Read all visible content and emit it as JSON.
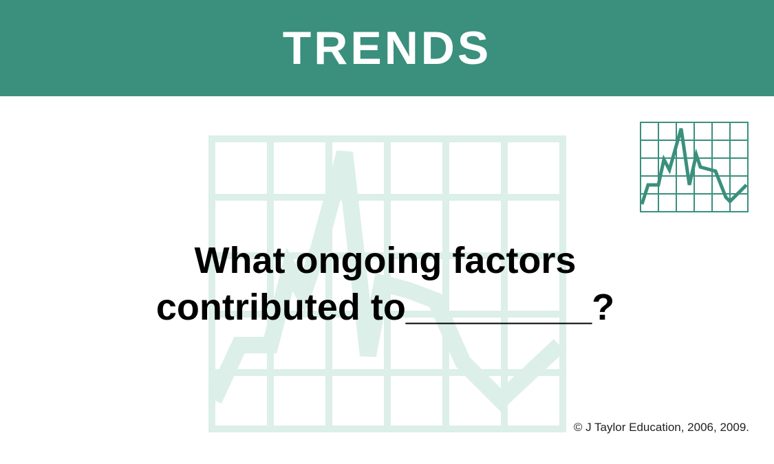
{
  "header": {
    "title": "TRENDS"
  },
  "question": {
    "line1": "What ongoing factors",
    "line2": "contributed to_________?"
  },
  "footer": {
    "copyright": "© J Taylor Education, 2006, 2009."
  },
  "icons": {
    "watermark": "line-chart-watermark-icon",
    "corner": "trend-chart-icon"
  },
  "colors": {
    "brand": "#3a8f7d",
    "watermark": "#dcefe9",
    "background": "#ffffff",
    "text": "#000000"
  }
}
